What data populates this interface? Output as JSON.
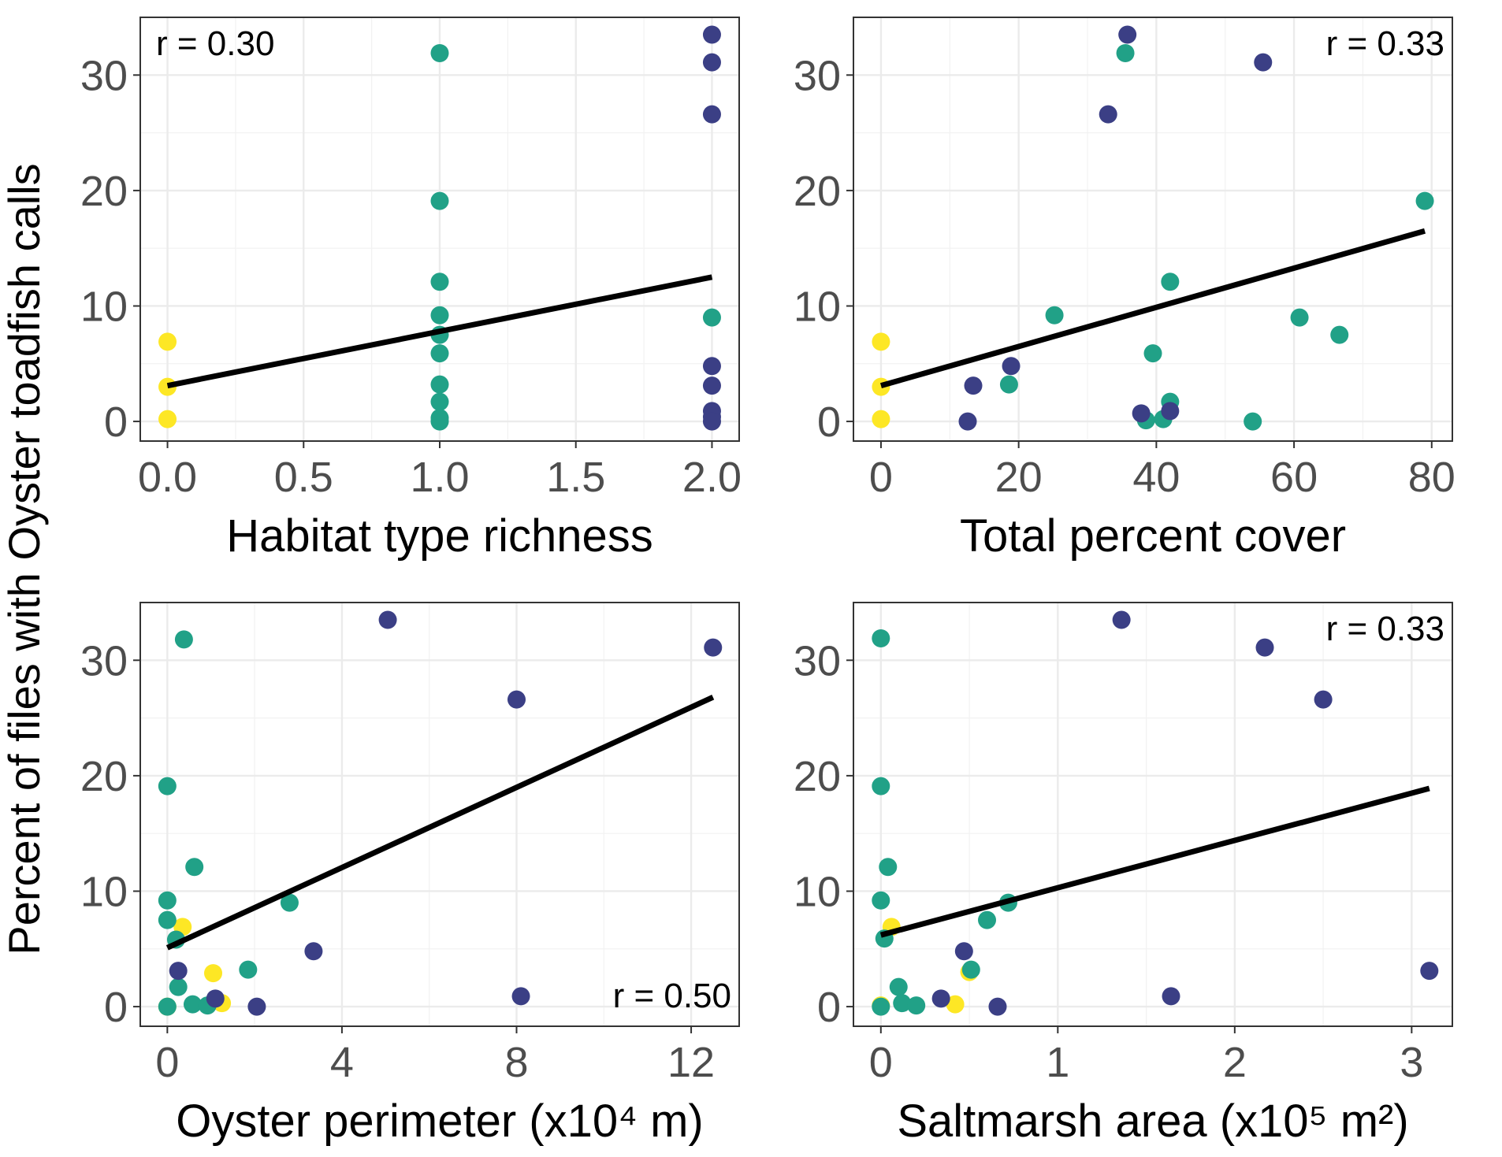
{
  "figure": {
    "y_axis_title": "Percent of files with Oyster toadfish calls"
  },
  "colors": {
    "0": "#fde725",
    "1": "#21a187",
    "2": "#3b3f85",
    "fit_line": "#000000"
  },
  "chart_data": [
    {
      "type": "scatter",
      "xlabel": "Habitat type richness",
      "ylabel": "",
      "xlim": [
        -0.1,
        2.1
      ],
      "ylim": [
        -1.7,
        35
      ],
      "x_ticks": [
        {
          "value": 0,
          "label": "0.0"
        },
        {
          "value": 0.5,
          "label": "0.5"
        },
        {
          "value": 1,
          "label": "1.0"
        },
        {
          "value": 1.5,
          "label": "1.5"
        },
        {
          "value": 2,
          "label": "2.0"
        }
      ],
      "y_ticks": [
        {
          "value": 0,
          "label": "0"
        },
        {
          "value": 10,
          "label": "10"
        },
        {
          "value": 20,
          "label": "20"
        },
        {
          "value": 30,
          "label": "30"
        }
      ],
      "annotation": {
        "text": "r = 0.30",
        "position": "top-left"
      },
      "fit_line": {
        "x": [
          0,
          2
        ],
        "y": [
          3.1,
          12.5
        ]
      },
      "grid": true,
      "points": [
        {
          "x": 0,
          "y": 6.9,
          "group": "0"
        },
        {
          "x": 0,
          "y": 3.0,
          "group": "0"
        },
        {
          "x": 0,
          "y": 0.2,
          "group": "0"
        },
        {
          "x": 1,
          "y": 31.9,
          "group": "1"
        },
        {
          "x": 1,
          "y": 19.1,
          "group": "1"
        },
        {
          "x": 1,
          "y": 12.1,
          "group": "1"
        },
        {
          "x": 1,
          "y": 9.2,
          "group": "1"
        },
        {
          "x": 1,
          "y": 7.5,
          "group": "1"
        },
        {
          "x": 1,
          "y": 5.9,
          "group": "1"
        },
        {
          "x": 1,
          "y": 3.2,
          "group": "1"
        },
        {
          "x": 1,
          "y": 1.7,
          "group": "1"
        },
        {
          "x": 1,
          "y": 0.3,
          "group": "1"
        },
        {
          "x": 1,
          "y": 0.0,
          "group": "1"
        },
        {
          "x": 2,
          "y": 33.5,
          "group": "2"
        },
        {
          "x": 2,
          "y": 31.1,
          "group": "2"
        },
        {
          "x": 2,
          "y": 26.6,
          "group": "2"
        },
        {
          "x": 2,
          "y": 9.0,
          "group": "1"
        },
        {
          "x": 2,
          "y": 4.8,
          "group": "2"
        },
        {
          "x": 2,
          "y": 3.1,
          "group": "2"
        },
        {
          "x": 2,
          "y": 0.9,
          "group": "2"
        },
        {
          "x": 2,
          "y": 0.4,
          "group": "2"
        },
        {
          "x": 2,
          "y": 0.0,
          "group": "2"
        }
      ]
    },
    {
      "type": "scatter",
      "xlabel": "Total percent cover",
      "ylabel": "",
      "xlim": [
        -4,
        83
      ],
      "ylim": [
        -1.7,
        35
      ],
      "x_ticks": [
        {
          "value": 0,
          "label": "0"
        },
        {
          "value": 20,
          "label": "20"
        },
        {
          "value": 40,
          "label": "40"
        },
        {
          "value": 60,
          "label": "60"
        },
        {
          "value": 80,
          "label": "80"
        }
      ],
      "y_ticks": [
        {
          "value": 0,
          "label": "0"
        },
        {
          "value": 10,
          "label": "10"
        },
        {
          "value": 20,
          "label": "20"
        },
        {
          "value": 30,
          "label": "30"
        }
      ],
      "annotation": {
        "text": "r = 0.33",
        "position": "top-right"
      },
      "fit_line": {
        "x": [
          0,
          79
        ],
        "y": [
          3.1,
          16.5
        ]
      },
      "grid": true,
      "points": [
        {
          "x": 0,
          "y": 6.9,
          "group": "0"
        },
        {
          "x": 0,
          "y": 3.0,
          "group": "0"
        },
        {
          "x": 0,
          "y": 0.2,
          "group": "0"
        },
        {
          "x": 35.5,
          "y": 31.9,
          "group": "1"
        },
        {
          "x": 79,
          "y": 19.1,
          "group": "1"
        },
        {
          "x": 42,
          "y": 12.1,
          "group": "1"
        },
        {
          "x": 25.2,
          "y": 9.2,
          "group": "1"
        },
        {
          "x": 60.8,
          "y": 9.0,
          "group": "1"
        },
        {
          "x": 66.6,
          "y": 7.5,
          "group": "1"
        },
        {
          "x": 39.5,
          "y": 5.9,
          "group": "1"
        },
        {
          "x": 18.6,
          "y": 3.2,
          "group": "1"
        },
        {
          "x": 42,
          "y": 1.7,
          "group": "1"
        },
        {
          "x": 38.5,
          "y": 0.1,
          "group": "1"
        },
        {
          "x": 41,
          "y": 0.2,
          "group": "1"
        },
        {
          "x": 54,
          "y": 0.0,
          "group": "1"
        },
        {
          "x": 35.8,
          "y": 33.5,
          "group": "2"
        },
        {
          "x": 55.5,
          "y": 31.1,
          "group": "2"
        },
        {
          "x": 33,
          "y": 26.6,
          "group": "2"
        },
        {
          "x": 18.9,
          "y": 4.8,
          "group": "2"
        },
        {
          "x": 13.4,
          "y": 3.1,
          "group": "2"
        },
        {
          "x": 12.6,
          "y": 0.0,
          "group": "2"
        },
        {
          "x": 37.8,
          "y": 0.7,
          "group": "2"
        },
        {
          "x": 42,
          "y": 0.9,
          "group": "2"
        }
      ]
    },
    {
      "type": "scatter",
      "xlabel": "Oyster perimeter (x10⁴ m)",
      "ylabel": "",
      "xlim": [
        -0.62,
        13.1
      ],
      "ylim": [
        -1.7,
        35
      ],
      "x_ticks": [
        {
          "value": 0,
          "label": "0"
        },
        {
          "value": 4,
          "label": "4"
        },
        {
          "value": 8,
          "label": "8"
        },
        {
          "value": 12,
          "label": "12"
        }
      ],
      "y_ticks": [
        {
          "value": 0,
          "label": "0"
        },
        {
          "value": 10,
          "label": "10"
        },
        {
          "value": 20,
          "label": "20"
        },
        {
          "value": 30,
          "label": "30"
        }
      ],
      "annotation": {
        "text": "r = 0.50",
        "position": "bottom-right"
      },
      "fit_line": {
        "x": [
          0,
          12.5
        ],
        "y": [
          5.1,
          26.8
        ]
      },
      "grid": true,
      "points": [
        {
          "x": 0.35,
          "y": 6.9,
          "group": "0"
        },
        {
          "x": 1.05,
          "y": 2.9,
          "group": "0"
        },
        {
          "x": 1.25,
          "y": 0.3,
          "group": "0"
        },
        {
          "x": 0.0,
          "y": 0.0,
          "group": "0"
        },
        {
          "x": 0.38,
          "y": 31.8,
          "group": "1"
        },
        {
          "x": 0.0,
          "y": 19.1,
          "group": "1"
        },
        {
          "x": 0.62,
          "y": 12.1,
          "group": "1"
        },
        {
          "x": 0.0,
          "y": 9.2,
          "group": "1"
        },
        {
          "x": 2.8,
          "y": 9.0,
          "group": "1"
        },
        {
          "x": 0.0,
          "y": 7.5,
          "group": "1"
        },
        {
          "x": 0.2,
          "y": 5.8,
          "group": "1"
        },
        {
          "x": 1.85,
          "y": 3.2,
          "group": "1"
        },
        {
          "x": 0.25,
          "y": 1.7,
          "group": "1"
        },
        {
          "x": 0.58,
          "y": 0.2,
          "group": "1"
        },
        {
          "x": 0.92,
          "y": 0.1,
          "group": "1"
        },
        {
          "x": 0.0,
          "y": 0.0,
          "group": "1"
        },
        {
          "x": 5.05,
          "y": 33.5,
          "group": "2"
        },
        {
          "x": 12.5,
          "y": 31.1,
          "group": "2"
        },
        {
          "x": 8.0,
          "y": 26.6,
          "group": "2"
        },
        {
          "x": 3.35,
          "y": 4.8,
          "group": "2"
        },
        {
          "x": 0.25,
          "y": 3.1,
          "group": "2"
        },
        {
          "x": 1.1,
          "y": 0.7,
          "group": "2"
        },
        {
          "x": 8.1,
          "y": 0.9,
          "group": "2"
        },
        {
          "x": 2.05,
          "y": 0.0,
          "group": "2"
        }
      ]
    },
    {
      "type": "scatter",
      "xlabel": "Saltmarsh area (x10⁵ m²)",
      "ylabel": "",
      "xlim": [
        -0.155,
        3.23
      ],
      "ylim": [
        -1.7,
        35
      ],
      "x_ticks": [
        {
          "value": 0,
          "label": "0"
        },
        {
          "value": 1,
          "label": "1"
        },
        {
          "value": 2,
          "label": "2"
        },
        {
          "value": 3,
          "label": "3"
        }
      ],
      "y_ticks": [
        {
          "value": 0,
          "label": "0"
        },
        {
          "value": 10,
          "label": "10"
        },
        {
          "value": 20,
          "label": "20"
        },
        {
          "value": 30,
          "label": "30"
        }
      ],
      "annotation": {
        "text": "r = 0.33",
        "position": "top-right"
      },
      "fit_line": {
        "x": [
          0,
          3.1
        ],
        "y": [
          6.2,
          18.9
        ]
      },
      "grid": true,
      "points": [
        {
          "x": 0.06,
          "y": 6.9,
          "group": "0"
        },
        {
          "x": 0.5,
          "y": 3.0,
          "group": "0"
        },
        {
          "x": 0.42,
          "y": 0.2,
          "group": "0"
        },
        {
          "x": 0.0,
          "y": 0.1,
          "group": "0"
        },
        {
          "x": 0.0,
          "y": 31.9,
          "group": "1"
        },
        {
          "x": 0.0,
          "y": 19.1,
          "group": "1"
        },
        {
          "x": 0.04,
          "y": 12.1,
          "group": "1"
        },
        {
          "x": 0.0,
          "y": 9.2,
          "group": "1"
        },
        {
          "x": 0.72,
          "y": 9.0,
          "group": "1"
        },
        {
          "x": 0.6,
          "y": 7.5,
          "group": "1"
        },
        {
          "x": 0.02,
          "y": 5.9,
          "group": "1"
        },
        {
          "x": 0.51,
          "y": 3.2,
          "group": "1"
        },
        {
          "x": 0.1,
          "y": 1.7,
          "group": "1"
        },
        {
          "x": 0.12,
          "y": 0.3,
          "group": "1"
        },
        {
          "x": 0.2,
          "y": 0.1,
          "group": "1"
        },
        {
          "x": 0.0,
          "y": 0.0,
          "group": "1"
        },
        {
          "x": 1.36,
          "y": 33.5,
          "group": "2"
        },
        {
          "x": 2.17,
          "y": 31.1,
          "group": "2"
        },
        {
          "x": 2.5,
          "y": 26.6,
          "group": "2"
        },
        {
          "x": 0.47,
          "y": 4.8,
          "group": "2"
        },
        {
          "x": 3.1,
          "y": 3.1,
          "group": "2"
        },
        {
          "x": 1.64,
          "y": 0.9,
          "group": "2"
        },
        {
          "x": 0.34,
          "y": 0.7,
          "group": "2"
        },
        {
          "x": 0.66,
          "y": 0.0,
          "group": "2"
        }
      ]
    }
  ]
}
